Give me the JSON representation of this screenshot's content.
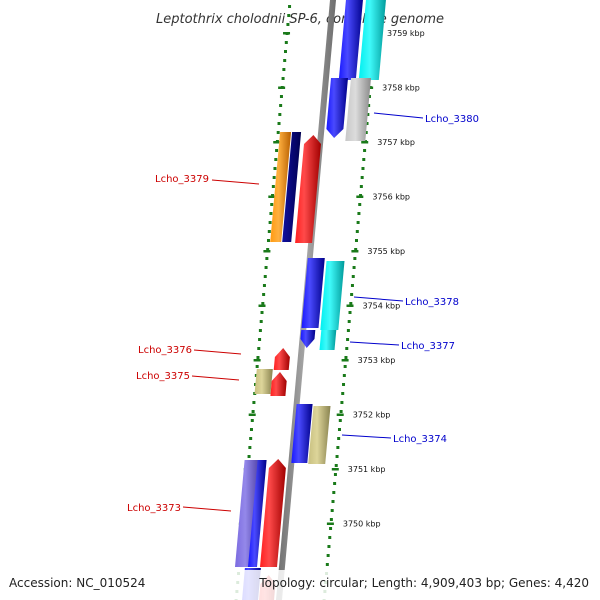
{
  "title": "Leptothrix cholodnii SP-6, complete genome",
  "footer": {
    "accession": "Accession: NC_010524",
    "topology": "Topology: circular; Length: 4,909,403 bp; Genes: 4,420"
  },
  "ticks": [
    {
      "label": "3759 kbp",
      "kbp": 3759
    },
    {
      "label": "3758 kbp",
      "kbp": 3758
    },
    {
      "label": "3757 kbp",
      "kbp": 3757
    },
    {
      "label": "3756 kbp",
      "kbp": 3756
    },
    {
      "label": "3755 kbp",
      "kbp": 3755
    },
    {
      "label": "3754 kbp",
      "kbp": 3754
    },
    {
      "label": "3753 kbp",
      "kbp": 3753
    },
    {
      "label": "3752 kbp",
      "kbp": 3752
    },
    {
      "label": "3751 kbp",
      "kbp": 3751
    },
    {
      "label": "3750 kbp",
      "kbp": 3750
    }
  ],
  "genes": [
    {
      "label": "Lcho_3380",
      "strand": "right",
      "color": "#0000cc"
    },
    {
      "label": "Lcho_3379",
      "strand": "left",
      "color": "#cc0000"
    },
    {
      "label": "Lcho_3378",
      "strand": "right",
      "color": "#0000cc"
    },
    {
      "label": "Lcho_3377",
      "strand": "right",
      "color": "#0000cc"
    },
    {
      "label": "Lcho_3376",
      "strand": "left",
      "color": "#cc0000"
    },
    {
      "label": "Lcho_3375",
      "strand": "left",
      "color": "#cc0000"
    },
    {
      "label": "Lcho_3374",
      "strand": "right",
      "color": "#0000cc"
    },
    {
      "label": "Lcho_3373",
      "strand": "left",
      "color": "#cc0000"
    }
  ],
  "colors": {
    "backbone": "#808080",
    "guide_dots": "#1a7a1a",
    "forward_cds": "#0000ff",
    "reverse_cds": "#ff0000",
    "cyan": "#00e5e5",
    "grey": "#b8b8b8",
    "khaki": "#bdb76b",
    "orange": "#ff8c00",
    "navy": "#000080",
    "slate": "#6a5acd"
  }
}
